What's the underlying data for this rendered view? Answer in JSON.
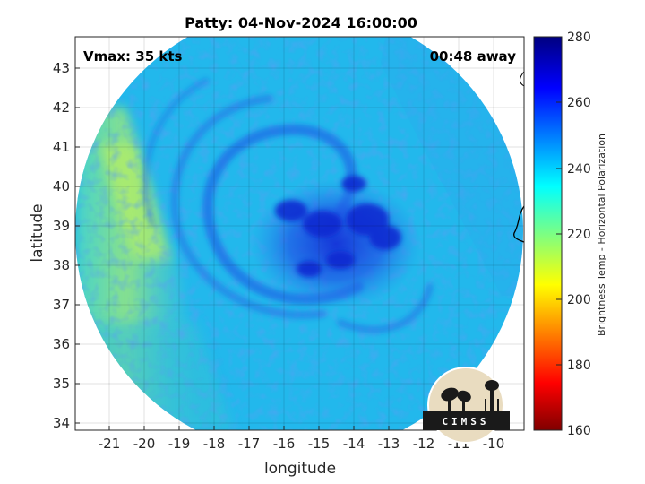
{
  "title": "Patty: 04-Nov-2024 16:00:00",
  "annotations": {
    "vmax": "Vmax: 35 kts",
    "time_away": "00:48 away"
  },
  "axes": {
    "xlabel": "longitude",
    "ylabel": "latitude",
    "xticks": [
      "-21",
      "-20",
      "-19",
      "-18",
      "-17",
      "-16",
      "-15",
      "-14",
      "-13",
      "-12",
      "-11",
      "-10"
    ],
    "yticks": [
      "43",
      "42",
      "41",
      "40",
      "39",
      "38",
      "37",
      "36",
      "35",
      "34"
    ]
  },
  "colorbar": {
    "label": "Brightness Temp - Horizontal Polarization",
    "ticks": [
      "280",
      "260",
      "240",
      "220",
      "200",
      "180",
      "160"
    ],
    "colormap": "jet"
  },
  "logo": {
    "text": "CIMSS"
  },
  "colors": {
    "background_field": "#1fb8ec",
    "core": "#1028d8",
    "left_band": "#7ee49a"
  }
}
